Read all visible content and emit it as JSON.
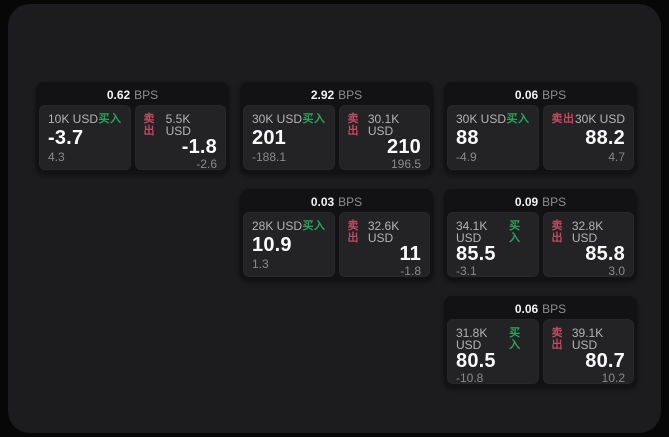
{
  "colors": {
    "panel": "#1c1c1e",
    "card": "#121214",
    "tile": "#232325",
    "buy": "#2da25c",
    "sell": "#bf4a62"
  },
  "labels": {
    "buy": "买入",
    "sell": "卖出",
    "bps": "BPS"
  },
  "cards": [
    {
      "bps": "0.62",
      "buy": {
        "amount": "10K USD",
        "price": "-3.7",
        "delta": "4.3"
      },
      "sell": {
        "amount": "5.5K USD",
        "price": "-1.8",
        "delta": "-2.6"
      }
    },
    {
      "bps": "2.92",
      "buy": {
        "amount": "30K USD",
        "price": "201",
        "delta": "-188.1"
      },
      "sell": {
        "amount": "30.1K USD",
        "price": "210",
        "delta": "196.5"
      }
    },
    {
      "bps": "0.03",
      "buy": {
        "amount": "28K USD",
        "price": "10.9",
        "delta": "1.3"
      },
      "sell": {
        "amount": "32.6K USD",
        "price": "11",
        "delta": "-1.8"
      }
    },
    {
      "bps": "0.06",
      "buy": {
        "amount": "30K USD",
        "price": "88",
        "delta": "-4.9"
      },
      "sell": {
        "amount": "30K USD",
        "price": "88.2",
        "delta": "4.7"
      }
    },
    {
      "bps": "0.09",
      "buy": {
        "amount": "34.1K USD",
        "price": "85.5",
        "delta": "-3.1"
      },
      "sell": {
        "amount": "32.8K USD",
        "price": "85.8",
        "delta": "3.0"
      }
    },
    {
      "bps": "0.06",
      "buy": {
        "amount": "31.8K USD",
        "price": "80.5",
        "delta": "-10.8"
      },
      "sell": {
        "amount": "39.1K USD",
        "price": "80.7",
        "delta": "10.2"
      }
    }
  ]
}
